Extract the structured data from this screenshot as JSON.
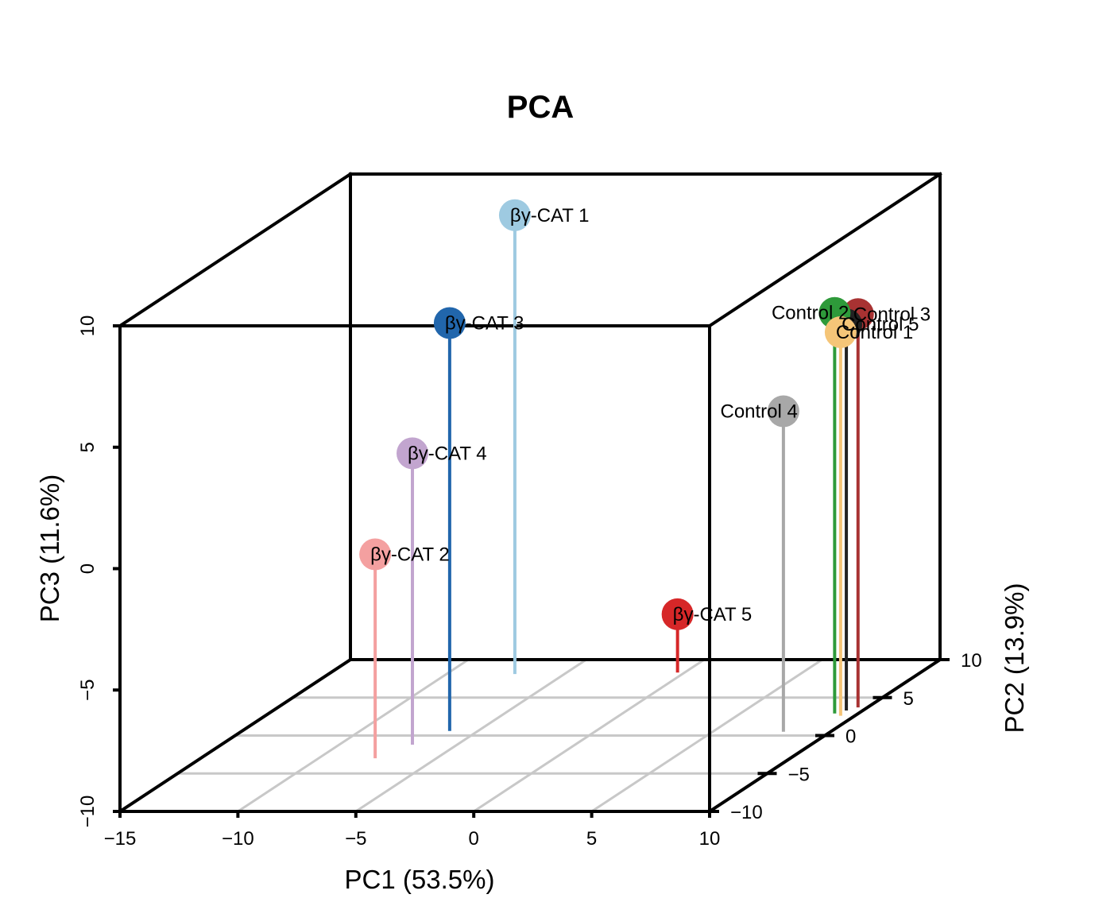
{
  "chart_data": {
    "type": "scatter",
    "subtype": "scatter3d",
    "title": "PCA",
    "xlabel": "PC1 (53.5%)",
    "ylabel": "PC2 (13.9%)",
    "zlabel": "PC3 (11.6%)",
    "xlim": [
      -15,
      10
    ],
    "ylim": [
      -10,
      10
    ],
    "zlim": [
      -10,
      10
    ],
    "x_ticks": [
      -15,
      -10,
      -5,
      0,
      5,
      10
    ],
    "y_ticks": [
      -10,
      -5,
      0,
      5,
      10
    ],
    "z_ticks": [
      -10,
      -5,
      0,
      5,
      10
    ],
    "x_tick_labels": [
      "−15",
      "−10",
      "−5",
      "0",
      "5",
      "10"
    ],
    "y_tick_labels": [
      "−10",
      "−5",
      "0",
      "5",
      "10"
    ],
    "z_tick_labels": [
      "−10",
      "−5",
      "0",
      "5",
      "10"
    ],
    "grid": "floor",
    "drop_lines": true,
    "points": [
      {
        "label": "βγ-CAT 1",
        "x": -7.1,
        "y": 8.1,
        "z": 8.9,
        "color": "#9ECAE1"
      },
      {
        "label": "βγ-CAT 3",
        "x": -6.2,
        "y": 0.6,
        "z": 6.8,
        "color": "#2166AC"
      },
      {
        "label": "βγ-CAT 4",
        "x": -6.9,
        "y": -1.2,
        "z": 2.0,
        "color": "#C2A5CF"
      },
      {
        "label": "βγ-CAT 2",
        "x": -7.6,
        "y": -3.0,
        "z": -1.6,
        "color": "#F4A0A0"
      },
      {
        "label": "βγ-CAT 5",
        "x": -0.3,
        "y": 8.3,
        "z": -7.6,
        "color": "#D62728"
      },
      {
        "label": "Control 3",
        "x": 9.6,
        "y": 3.7,
        "z": 6.2,
        "color": "#A83232"
      },
      {
        "label": "Control 2",
        "x": 9.0,
        "y": 2.9,
        "z": 6.5,
        "color": "#2E9A3A"
      },
      {
        "label": "Control 5",
        "x": 9.3,
        "y": 3.3,
        "z": 5.9,
        "color": "#222222"
      },
      {
        "label": "Control 1",
        "x": 9.4,
        "y": 2.6,
        "z": 5.8,
        "color": "#F5C578"
      },
      {
        "label": "Control 4",
        "x": 8.0,
        "y": 0.5,
        "z": 3.2,
        "color": "#A8A8A8"
      }
    ]
  }
}
